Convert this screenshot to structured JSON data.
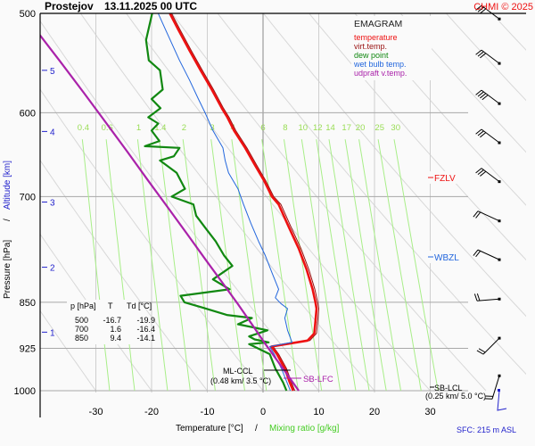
{
  "header": {
    "station": "Prostejov",
    "datetime": "13.11.2025 00 UTC",
    "copyright": "CHMI © 2025"
  },
  "legend": {
    "title": "EMAGRAM",
    "items": [
      {
        "label": "temperature",
        "color": "#ee1111"
      },
      {
        "label": "virt.temp.",
        "color": "#991111"
      },
      {
        "label": "dew point",
        "color": "#118811"
      },
      {
        "label": "wet bulb temp.",
        "color": "#2266dd"
      },
      {
        "label": "udpraft v.temp.",
        "color": "#aa22aa"
      }
    ]
  },
  "table": {
    "headers": [
      "p [hPa]",
      "T",
      "Td [°C]"
    ],
    "rows": [
      [
        "500",
        "-16.7",
        "-19.9"
      ],
      [
        "700",
        "1.6",
        "-16.4"
      ],
      [
        "850",
        "9.4",
        "-14.1"
      ]
    ]
  },
  "annotations": {
    "fzlv": "FZLV",
    "wbzl": "WBZL",
    "ml_ccl_1": "ML-CCL",
    "ml_ccl_2": "(0.48 km/ 3.5 °C)",
    "sb_lfc": "SB-LFC",
    "sb_lcl_1": "SB-LCL",
    "sb_lcl_2": "(0.25 km/ 5.0 °C)",
    "sfc": "SFC: 215 m ASL"
  },
  "chart_data": {
    "type": "line",
    "title": "Prostejov 13.11.2025 00 UTC",
    "xlabel": "Temperature [°C]",
    "xlabel2": "Mixing ratio [g/kg]",
    "ylabel": "Pressure [hPa]",
    "ylabel2": "Altitude [km]",
    "xlim": [
      -40,
      48
    ],
    "ylim": [
      1000,
      500
    ],
    "x_ticks": [
      "-30",
      "-20",
      "-10",
      "0",
      "10",
      "20",
      "30"
    ],
    "x_tick_values": [
      -30,
      -20,
      -10,
      0,
      10,
      20,
      30
    ],
    "y_ticks": [
      "500",
      "600",
      "700",
      "850",
      "925",
      "1000"
    ],
    "y_tick_values": [
      500,
      600,
      700,
      850,
      925,
      1000
    ],
    "altitude_ticks": [
      {
        "label": "5",
        "p": 555
      },
      {
        "label": "4",
        "p": 621
      },
      {
        "label": "3",
        "p": 707
      },
      {
        "label": "2",
        "p": 797
      },
      {
        "label": "1",
        "p": 898
      }
    ],
    "mixing_ratio_labels": [
      "0.4",
      "0.6",
      "1",
      "1.4",
      "2",
      "3",
      "4",
      "6",
      "8",
      "10",
      "12",
      "14",
      "17",
      "20",
      "25",
      "30"
    ],
    "mixing_ratio_values": [
      0.4,
      0.6,
      1,
      1.4,
      2,
      3,
      4,
      6,
      8,
      10,
      12,
      14,
      17,
      20,
      25,
      30
    ],
    "series": [
      {
        "name": "temperature",
        "color": "#ee1111",
        "points": [
          [
            5.4,
            1000
          ],
          [
            4.8,
            985
          ],
          [
            3.9,
            960
          ],
          [
            2.5,
            935
          ],
          [
            1.5,
            922
          ],
          [
            8,
            912
          ],
          [
            9.2,
            900
          ],
          [
            9.4,
            880
          ],
          [
            9.6,
            860
          ],
          [
            9.4,
            850
          ],
          [
            8.9,
            830
          ],
          [
            7.8,
            800
          ],
          [
            6.4,
            770
          ],
          [
            4.6,
            740
          ],
          [
            2.8,
            710
          ],
          [
            1.6,
            700
          ],
          [
            0.2,
            680
          ],
          [
            -1.5,
            660
          ],
          [
            -3.2,
            640
          ],
          [
            -5.2,
            620
          ],
          [
            -6.4,
            605
          ],
          [
            -7.4,
            595
          ],
          [
            -9.2,
            575
          ],
          [
            -11.2,
            555
          ],
          [
            -13.2,
            535
          ],
          [
            -15.2,
            515
          ],
          [
            -16.7,
            500
          ]
        ]
      },
      {
        "name": "virt.temp.",
        "color": "#991111",
        "points": [
          [
            5.7,
            1000
          ],
          [
            5.1,
            985
          ],
          [
            4.2,
            960
          ],
          [
            2.8,
            935
          ],
          [
            1.8,
            922
          ],
          [
            8.4,
            912
          ],
          [
            9.6,
            900
          ],
          [
            9.8,
            880
          ],
          [
            10.0,
            860
          ],
          [
            9.8,
            850
          ],
          [
            9.3,
            830
          ],
          [
            8.2,
            800
          ],
          [
            6.8,
            770
          ],
          [
            5.0,
            740
          ],
          [
            3.2,
            710
          ],
          [
            1.9,
            700
          ],
          [
            0.5,
            680
          ],
          [
            -1.2,
            660
          ],
          [
            -2.9,
            640
          ],
          [
            -4.9,
            620
          ],
          [
            -6.1,
            605
          ],
          [
            -7.1,
            595
          ],
          [
            -8.9,
            575
          ],
          [
            -10.9,
            555
          ],
          [
            -12.9,
            535
          ],
          [
            -14.9,
            515
          ],
          [
            -16.4,
            500
          ]
        ]
      },
      {
        "name": "dew point",
        "color": "#118811",
        "points": [
          [
            4.2,
            1000
          ],
          [
            3.6,
            985
          ],
          [
            2.2,
            960
          ],
          [
            1.2,
            935
          ],
          [
            -2.5,
            918
          ],
          [
            1.0,
            915
          ],
          [
            -1.5,
            910
          ],
          [
            -2.5,
            905
          ],
          [
            0.8,
            895
          ],
          [
            -4.5,
            885
          ],
          [
            -2,
            875
          ],
          [
            -6.5,
            870
          ],
          [
            -11,
            858
          ],
          [
            -14.1,
            850
          ],
          [
            -14.8,
            840
          ],
          [
            -6,
            830
          ],
          [
            -9,
            815
          ],
          [
            -5.5,
            795
          ],
          [
            -7,
            780
          ],
          [
            -8.5,
            760
          ],
          [
            -10.5,
            740
          ],
          [
            -12,
            725
          ],
          [
            -12.5,
            710
          ],
          [
            -16.4,
            700
          ],
          [
            -14,
            690
          ],
          [
            -15.5,
            670
          ],
          [
            -18.5,
            655
          ],
          [
            -16,
            650
          ],
          [
            -15,
            640
          ],
          [
            -21.2,
            638
          ],
          [
            -18.6,
            632
          ],
          [
            -20,
            620
          ],
          [
            -18.8,
            612
          ],
          [
            -20.6,
            605
          ],
          [
            -18.4,
            595
          ],
          [
            -20,
            585
          ],
          [
            -18,
            575
          ],
          [
            -18.5,
            555
          ],
          [
            -20.5,
            545
          ],
          [
            -21,
            525
          ],
          [
            -19.9,
            500
          ]
        ]
      },
      {
        "name": "wet bulb temp.",
        "color": "#2266dd",
        "points": [
          [
            4.9,
            1000
          ],
          [
            4.3,
            985
          ],
          [
            3.3,
            960
          ],
          [
            2.0,
            935
          ],
          [
            1.2,
            922
          ],
          [
            5.2,
            915
          ],
          [
            4.4,
            895
          ],
          [
            3.9,
            875
          ],
          [
            4.4,
            860
          ],
          [
            3.2,
            852
          ],
          [
            2.2,
            843
          ],
          [
            2.8,
            830
          ],
          [
            1.6,
            805
          ],
          [
            0.4,
            780
          ],
          [
            -0.8,
            760
          ],
          [
            -2.2,
            735
          ],
          [
            -3.5,
            710
          ],
          [
            -4.5,
            690
          ],
          [
            -6.2,
            670
          ],
          [
            -6.8,
            655
          ],
          [
            -7.2,
            640
          ],
          [
            -9,
            620
          ],
          [
            -10.4,
            600
          ],
          [
            -11.6,
            585
          ],
          [
            -13.2,
            565
          ],
          [
            -15,
            545
          ],
          [
            -17.5,
            515
          ],
          [
            -18.8,
            500
          ]
        ]
      },
      {
        "name": "udpraft v.temp.",
        "color": "#aa22aa",
        "points": [
          [
            6.4,
            1000
          ],
          [
            3.2,
            955
          ],
          [
            0.2,
            915
          ],
          [
            -2.0,
            885
          ],
          [
            -4.5,
            853
          ],
          [
            -7.3,
            820
          ],
          [
            -10.4,
            785
          ],
          [
            -13.6,
            750
          ],
          [
            -17,
            715
          ],
          [
            -20.6,
            680
          ],
          [
            -24.3,
            645
          ],
          [
            -28.2,
            611
          ],
          [
            -32.2,
            578
          ],
          [
            -36.4,
            546
          ],
          [
            -40.8,
            515
          ],
          [
            -42.4,
            503
          ]
        ]
      }
    ],
    "wind_barbs": [
      {
        "p": 505
      },
      {
        "p": 548
      },
      {
        "p": 590
      },
      {
        "p": 634
      },
      {
        "p": 681
      },
      {
        "p": 732
      },
      {
        "p": 786
      },
      {
        "p": 845
      },
      {
        "p": 908
      },
      {
        "p": 973
      },
      {
        "p": 1000
      }
    ],
    "fzlv_p": 680,
    "wbzl_p": 787,
    "ml_ccl_p": 945,
    "sb_lfc_p": 962,
    "sb_lcl_p": 970
  }
}
